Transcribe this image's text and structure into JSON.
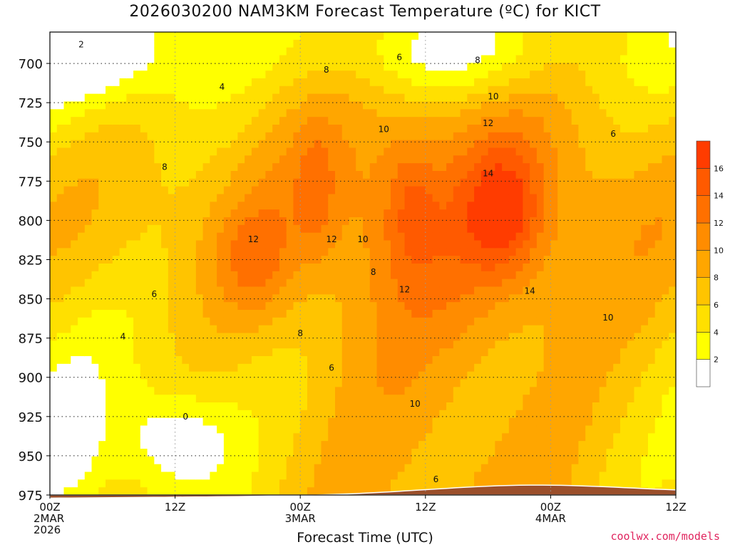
{
  "chart_data": {
    "type": "heatmap",
    "title": "2026030200 NAM3KM Forecast Temperature (ºC) for KICT",
    "xlabel": "Forecast Time (UTC)",
    "ylabel": "",
    "x_ticks": [
      {
        "hour": 0,
        "line1": "00Z",
        "line2": "2MAR",
        "line3": "2026"
      },
      {
        "hour": 12,
        "line1": "12Z",
        "line2": "",
        "line3": ""
      },
      {
        "hour": 24,
        "line1": "00Z",
        "line2": "3MAR",
        "line3": ""
      },
      {
        "hour": 36,
        "line1": "12Z",
        "line2": "",
        "line3": ""
      },
      {
        "hour": 48,
        "line1": "00Z",
        "line2": "4MAR",
        "line3": ""
      },
      {
        "hour": 60,
        "line1": "12Z",
        "line2": "",
        "line3": ""
      }
    ],
    "xlim": [
      0,
      60
    ],
    "y_ticks": [
      "700",
      "725",
      "750",
      "775",
      "800",
      "825",
      "850",
      "875",
      "900",
      "925",
      "950",
      "975"
    ],
    "ylim": [
      975,
      680
    ],
    "grid": true,
    "colorbar": {
      "labels": [
        "2",
        "4",
        "6",
        "8",
        "10",
        "12",
        "14",
        "16"
      ],
      "colors": [
        "#ffffff",
        "#ffff00",
        "#ffe000",
        "#ffc400",
        "#ffa600",
        "#ff8c00",
        "#ff7000",
        "#ff5a00",
        "#ff3c00"
      ]
    },
    "contour_labels": [
      {
        "text": "2",
        "hour": 3,
        "p": 688
      },
      {
        "text": "4",
        "hour": 16.5,
        "p": 715
      },
      {
        "text": "6",
        "hour": 33.5,
        "p": 696
      },
      {
        "text": "8",
        "hour": 26.5,
        "p": 704
      },
      {
        "text": "8",
        "hour": 41,
        "p": 698
      },
      {
        "text": "10",
        "hour": 42.5,
        "p": 721
      },
      {
        "text": "10",
        "hour": 32,
        "p": 742
      },
      {
        "text": "12",
        "hour": 42,
        "p": 738
      },
      {
        "text": "6",
        "hour": 54,
        "p": 745
      },
      {
        "text": "8",
        "hour": 11,
        "p": 766
      },
      {
        "text": "14",
        "hour": 42,
        "p": 770
      },
      {
        "text": "12",
        "hour": 19.5,
        "p": 812
      },
      {
        "text": "12",
        "hour": 27,
        "p": 812
      },
      {
        "text": "10",
        "hour": 30,
        "p": 812
      },
      {
        "text": "8",
        "hour": 31,
        "p": 833
      },
      {
        "text": "12",
        "hour": 34,
        "p": 844
      },
      {
        "text": "14",
        "hour": 46,
        "p": 845
      },
      {
        "text": "6",
        "hour": 10,
        "p": 847
      },
      {
        "text": "10",
        "hour": 53.5,
        "p": 862
      },
      {
        "text": "4",
        "hour": 7,
        "p": 874
      },
      {
        "text": "8",
        "hour": 24,
        "p": 872
      },
      {
        "text": "6",
        "hour": 27,
        "p": 894
      },
      {
        "text": "0",
        "hour": 13,
        "p": 925
      },
      {
        "text": "10",
        "hour": 35,
        "p": 917
      },
      {
        "text": "6",
        "hour": 37,
        "p": 965
      }
    ],
    "cores": [
      {
        "value": 15,
        "hour": 43.5,
        "p": 795,
        "sh": 3.5,
        "sp": 40
      },
      {
        "value": 12.5,
        "hour": 34.5,
        "p": 790,
        "sh": 2.5,
        "sp": 45
      },
      {
        "value": 12.5,
        "hour": 19.5,
        "p": 828,
        "sh": 3.5,
        "sp": 35
      },
      {
        "value": 12,
        "hour": 25.5,
        "p": 780,
        "sh": 1.8,
        "sp": 38
      }
    ]
  },
  "credit": "coolwx.com/models"
}
